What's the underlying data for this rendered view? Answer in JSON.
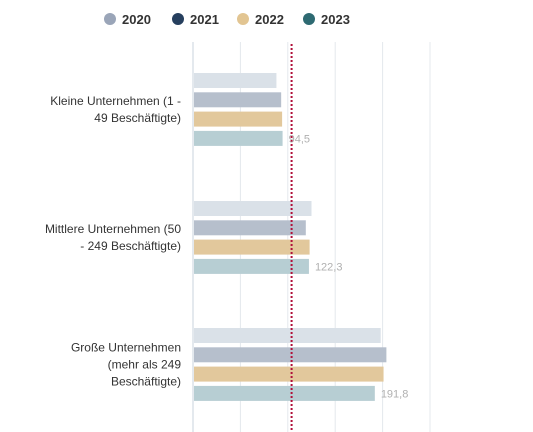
{
  "chart_data": {
    "type": "bar",
    "orientation": "horizontal",
    "categories": [
      [
        "Kleine Unternehmen (1 -",
        "49 Beschäftigte)"
      ],
      [
        "Mittlere Unternehmen (50",
        "- 249 Beschäftigte)"
      ],
      [
        "Große Unternehmen",
        "(mehr als 249",
        "Beschäftigte)"
      ]
    ],
    "series": [
      {
        "name": "2020",
        "legend_color": "#9aa5b8",
        "bar_color": "#dae1e8",
        "values": [
          88,
          125,
          198
        ]
      },
      {
        "name": "2021",
        "legend_color": "#263f5e",
        "bar_color": "#b6bfcc",
        "values": [
          93,
          119,
          204
        ]
      },
      {
        "name": "2022",
        "legend_color": "#e2c592",
        "bar_color": "#e2c89c",
        "values": [
          94,
          123,
          201
        ]
      },
      {
        "name": "2023",
        "legend_color": "#2e6a72",
        "bar_color": "#b7ced3",
        "values": [
          94.5,
          122.3,
          191.8
        ]
      }
    ],
    "data_labels": [
      "94,5",
      "122,3",
      "191,8"
    ],
    "xlim": [
      0,
      250
    ],
    "reference_line": {
      "value": 104,
      "color": "#b0103a"
    },
    "grid": true,
    "legend_position": "top"
  }
}
